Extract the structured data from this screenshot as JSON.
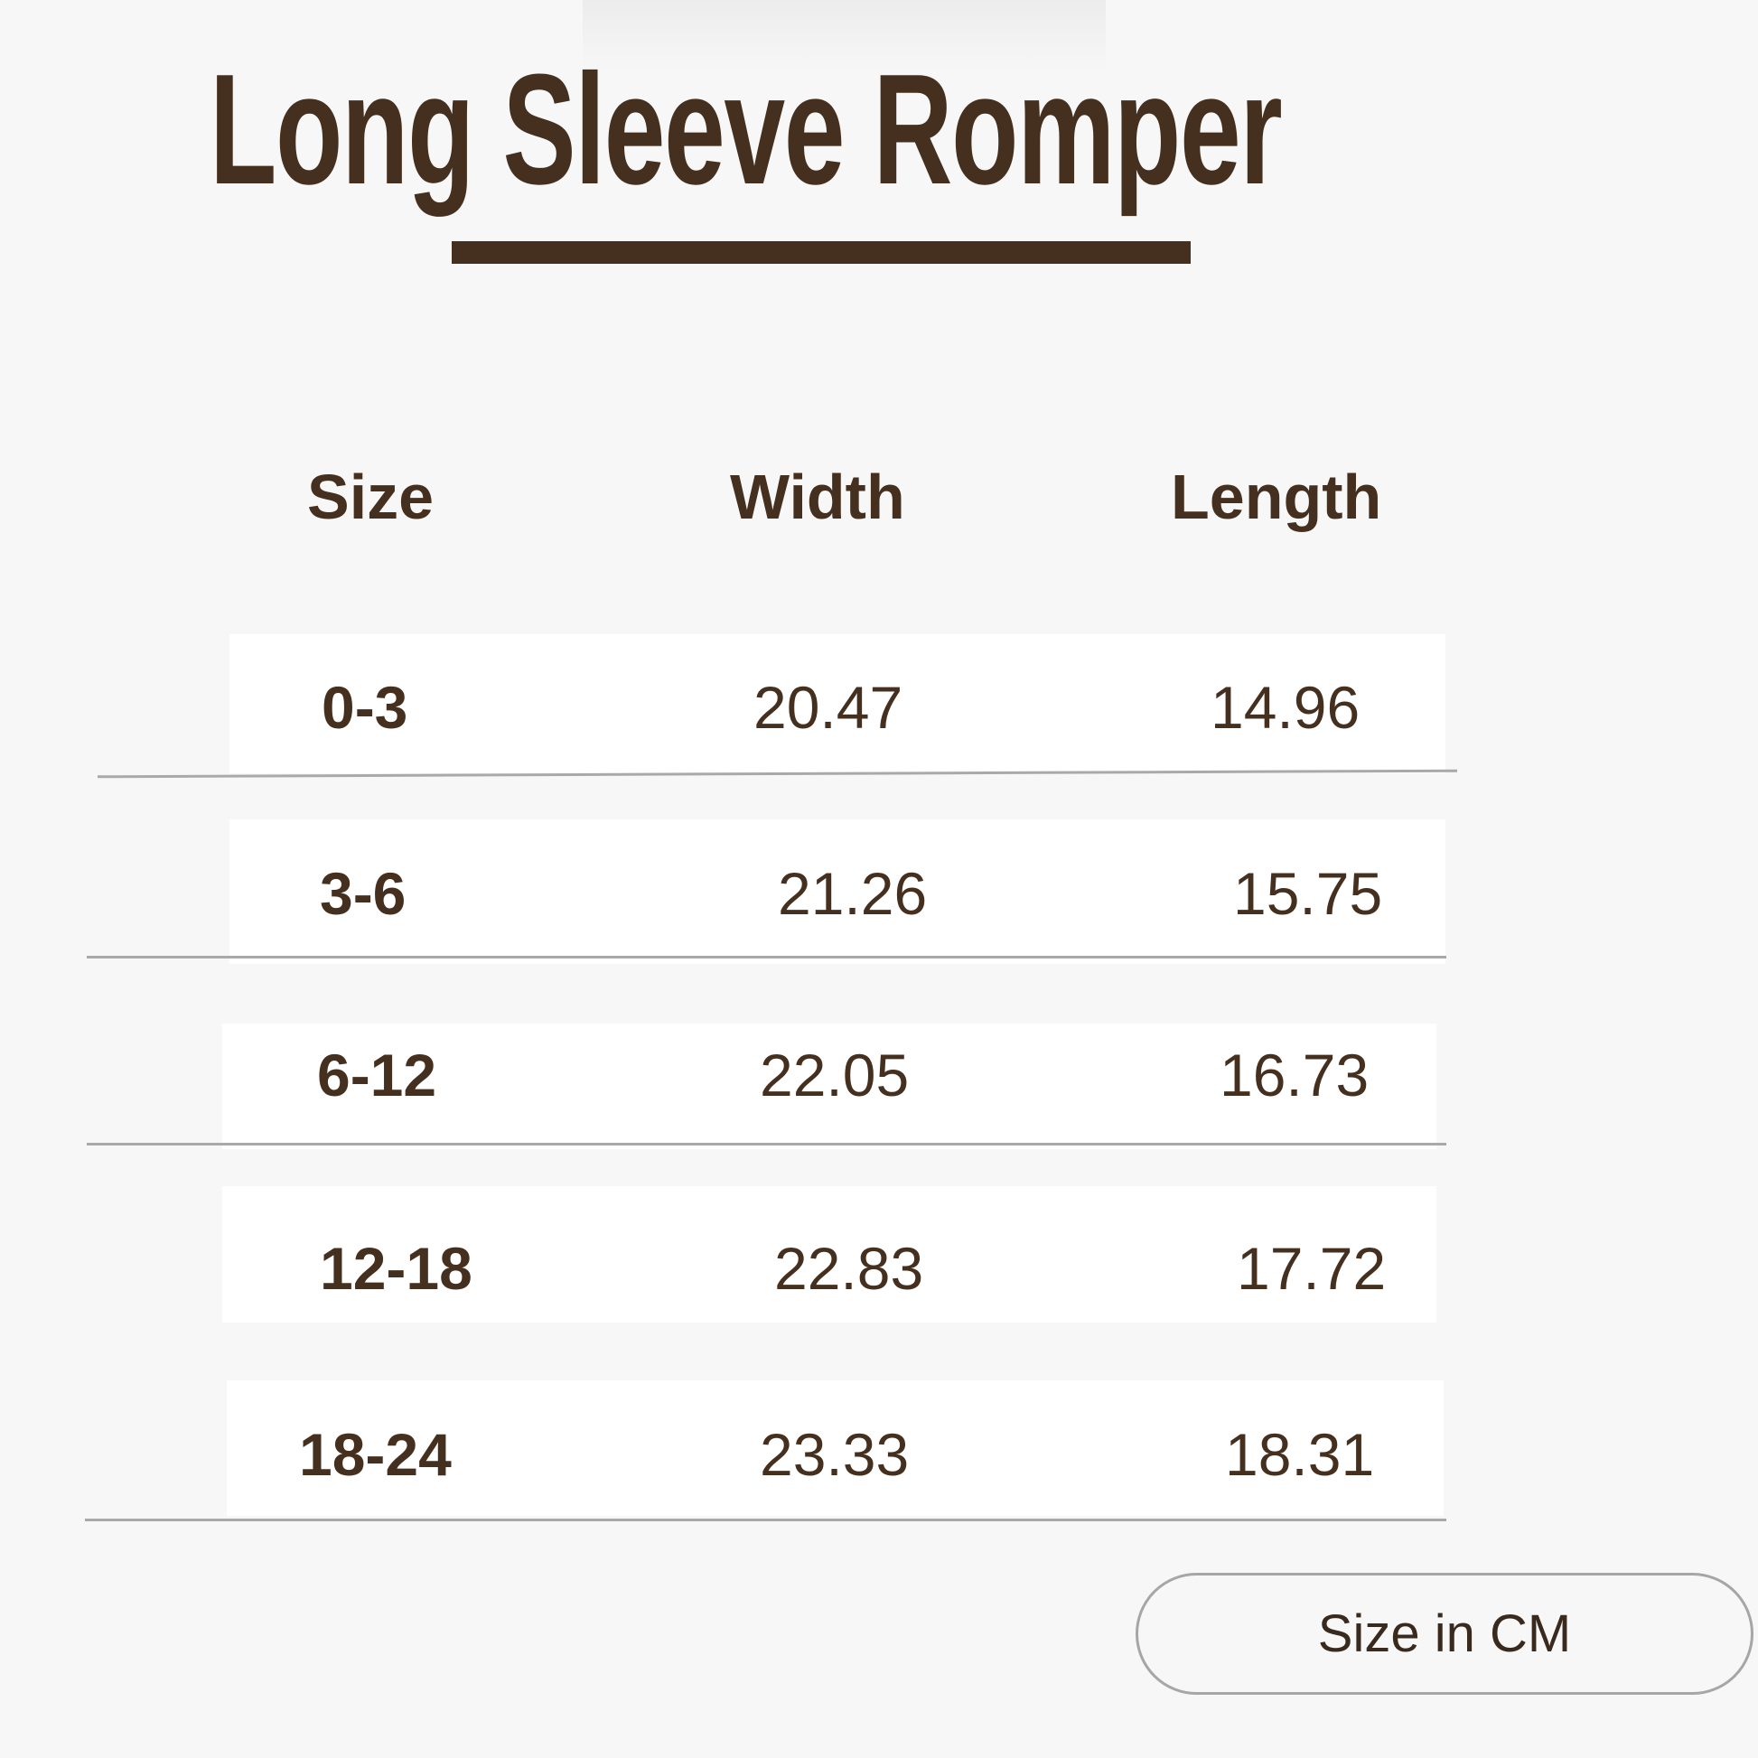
{
  "title": "Long Sleeve Romper",
  "colors": {
    "text": "#45301f",
    "background": "#f7f7f7",
    "row": "#ffffff",
    "divider": "#a9a9a9"
  },
  "table": {
    "headers": [
      "Size",
      "Width",
      "Length"
    ],
    "rows": [
      [
        "0-3",
        "20.47",
        "14.96"
      ],
      [
        "3-6",
        "21.26",
        "15.75"
      ],
      [
        "6-12",
        "22.05",
        "16.73"
      ],
      [
        "12-18",
        "22.83",
        "17.72"
      ],
      [
        "18-24",
        "23.33",
        "18.31"
      ]
    ]
  },
  "button": {
    "label": "Size in CM"
  }
}
